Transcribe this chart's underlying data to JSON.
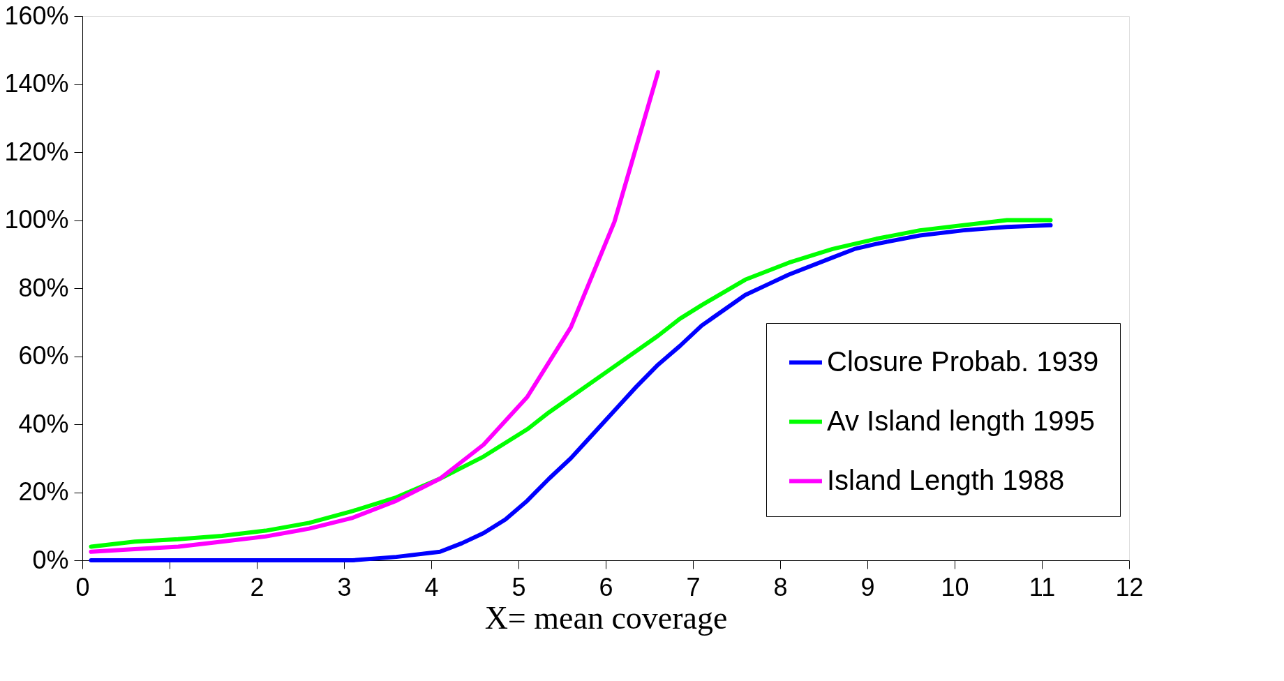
{
  "chart_data": {
    "type": "line",
    "xlabel": "X= mean coverage",
    "xlim": [
      0,
      12
    ],
    "xticks": [
      0,
      1,
      2,
      3,
      4,
      5,
      6,
      7,
      8,
      9,
      10,
      11,
      12
    ],
    "ylim": [
      0,
      160
    ],
    "yticks": [
      {
        "value": 0,
        "label": "0%"
      },
      {
        "value": 20,
        "label": "20%"
      },
      {
        "value": 40,
        "label": "40%"
      },
      {
        "value": 60,
        "label": "60%"
      },
      {
        "value": 80,
        "label": "80%"
      },
      {
        "value": 100,
        "label": "100%"
      },
      {
        "value": 120,
        "label": "120%"
      },
      {
        "value": 140,
        "label": "140%"
      },
      {
        "value": 160,
        "label": "160%"
      }
    ],
    "grid": false,
    "legend": "right",
    "marker": "none",
    "line_style": "solid",
    "series": [
      {
        "name": "Closure Probab. 1939",
        "color": "#0000ff",
        "x": [
          0.1,
          0.6,
          1.1,
          1.6,
          2.1,
          2.6,
          3.1,
          3.6,
          4.1,
          4.35,
          4.6,
          4.85,
          5.1,
          5.35,
          5.6,
          5.85,
          6.1,
          6.35,
          6.6,
          6.85,
          7.1,
          7.6,
          7.85,
          8.1,
          8.6,
          8.85,
          9.1,
          9.6,
          10.1,
          10.6,
          11.1
        ],
        "values": [
          0,
          0,
          0,
          0,
          0,
          0,
          0,
          1,
          2.5,
          5,
          8,
          12,
          17.5,
          24,
          30,
          37,
          44,
          51,
          57.5,
          63,
          69,
          78,
          81,
          84,
          89,
          91.5,
          93,
          95.5,
          97,
          98,
          98.5
        ]
      },
      {
        "name": "Av Island length 1995",
        "color": "#00ff00",
        "x": [
          0.1,
          0.6,
          1.1,
          1.6,
          2.1,
          2.6,
          3.1,
          3.6,
          4.1,
          4.6,
          5.1,
          5.35,
          5.6,
          6.1,
          6.6,
          6.85,
          7.1,
          7.6,
          8.1,
          8.6,
          9.1,
          9.6,
          10.1,
          10.6,
          11.1
        ],
        "values": [
          4,
          5.5,
          6.2,
          7.2,
          8.7,
          11,
          14.5,
          18.5,
          24,
          30.5,
          38.5,
          43.5,
          48,
          57,
          66,
          71,
          75,
          82.5,
          87.5,
          91.5,
          94.5,
          97,
          98.5,
          100,
          100
        ]
      },
      {
        "name": "Island Length 1988",
        "color": "#ff00ff",
        "x": [
          0.1,
          0.6,
          1.1,
          1.6,
          2.1,
          2.6,
          3.1,
          3.6,
          4.1,
          4.6,
          5.1,
          5.6,
          6.1,
          6.6
        ],
        "values": [
          2.5,
          3.3,
          4,
          5.5,
          7,
          9.3,
          12.5,
          17.5,
          24,
          34,
          48,
          68.5,
          99.5,
          143.5
        ]
      }
    ]
  }
}
